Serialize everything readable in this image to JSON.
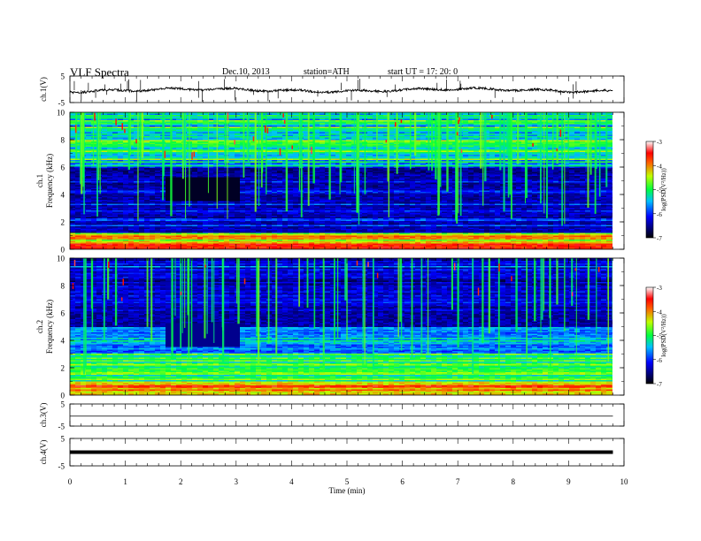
{
  "header": {
    "title": "VLF  Spectra",
    "date": "Dec.10, 2013",
    "station": "station=ATH",
    "start": "start  UT  =    17: 20: 0"
  },
  "chart_data": [
    {
      "type": "line",
      "panel": "ch1",
      "ylabel": "ch.1(V)",
      "yticks": [
        "5",
        "-5"
      ],
      "ylim": [
        -5,
        5
      ],
      "xlim": [
        0,
        10
      ],
      "x_extent": [
        0,
        9.8
      ],
      "series_color": "#000000"
    },
    {
      "type": "heatmap",
      "panel": "spec1",
      "ylabel": "ch.1\nFrequency  (kHz)",
      "ylabel_line1": "ch.1",
      "ylabel_line2": "Frequency  (kHz)",
      "yticks": [
        "0",
        "2",
        "4",
        "6",
        "8",
        "10"
      ],
      "ylim": [
        0,
        10
      ],
      "xlim": [
        0,
        10
      ],
      "x_extent": [
        0,
        9.8
      ],
      "colorbar": {
        "label": "log(PSD(V²/Hz))",
        "ticks": [
          "-3",
          "-4",
          "-5",
          "-6",
          "-7"
        ],
        "range": [
          -7,
          -3
        ]
      }
    },
    {
      "type": "heatmap",
      "panel": "spec2",
      "ylabel": "ch.2\nFrequency  (kHz)",
      "ylabel_line1": "ch.2",
      "ylabel_line2": "Frequency  (kHz)",
      "yticks": [
        "0",
        "2",
        "4",
        "6",
        "8",
        "10"
      ],
      "ylim": [
        0,
        10
      ],
      "xlim": [
        0,
        10
      ],
      "x_extent": [
        0,
        9.8
      ],
      "colorbar": {
        "label": "log(PSD(V²/Hz))",
        "ticks": [
          "-3",
          "-4",
          "-5",
          "-6",
          "-7"
        ],
        "range": [
          -7,
          -3
        ]
      }
    },
    {
      "type": "line",
      "panel": "ch3",
      "ylabel": "ch.3(V)",
      "yticks": [
        "5",
        "-5"
      ],
      "ylim": [
        -5,
        5
      ],
      "xlim": [
        0,
        10
      ],
      "x_extent": [
        0,
        9.8
      ]
    },
    {
      "type": "line",
      "panel": "ch4",
      "ylabel": "ch.4(V)",
      "yticks": [
        "5",
        "-5"
      ],
      "ylim": [
        -5,
        5
      ],
      "xlim": [
        0,
        10
      ],
      "x_extent": [
        0,
        9.8
      ]
    }
  ],
  "x_axis": {
    "label": "Time  (min)",
    "ticks": [
      "0",
      "1",
      "2",
      "3",
      "4",
      "5",
      "6",
      "7",
      "8",
      "9",
      "10"
    ]
  }
}
